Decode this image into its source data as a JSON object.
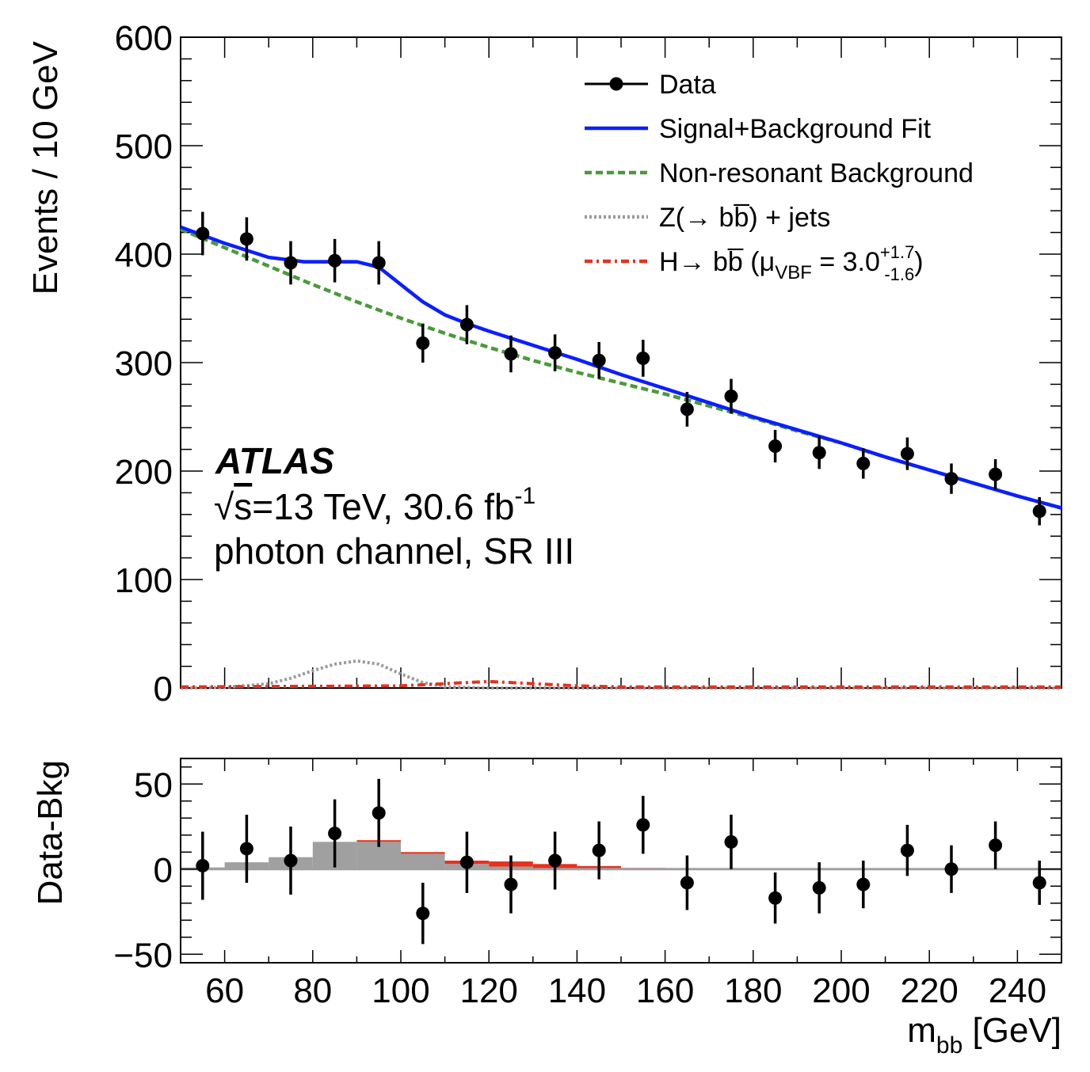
{
  "chart_data": [
    {
      "type": "scatter",
      "panel": "main",
      "ylabel": "Events / 10 GeV",
      "xlim": [
        50,
        250
      ],
      "ylim": [
        0,
        600
      ],
      "yticks": [
        "0",
        "100",
        "200",
        "300",
        "400",
        "500",
        "600"
      ],
      "legend_placement": "top-right",
      "legend": [
        {
          "label": "Data",
          "style": "marker-line",
          "color": "#000000"
        },
        {
          "label": "Signal+Background Fit",
          "style": "solid",
          "color": "#0a1fff"
        },
        {
          "label": "Non-resonant Background",
          "style": "dashed",
          "color": "#4a9a3a"
        },
        {
          "label": "Z(→ bb̅) + jets",
          "style": "dotted",
          "color": "#9a9a9a"
        },
        {
          "label": "H→ bb̅ (μ",
          "sub": "VBF",
          "eq": " =  3.0",
          "sup": "+1.7",
          "subsub": "-1.6",
          "close": ")",
          "style": "dashdot",
          "color": "#e8301c"
        }
      ],
      "annotations": {
        "experiment": "ATLAS",
        "line1_sqrt": "√",
        "line1_s": "s",
        "line1_rest": "=13 TeV, 30.6 fb",
        "line1_sup": "-1",
        "line2": "photon channel, SR III"
      },
      "data_points": {
        "x": [
          55,
          65,
          75,
          85,
          95,
          105,
          115,
          125,
          135,
          145,
          155,
          165,
          175,
          185,
          195,
          205,
          215,
          225,
          235,
          245
        ],
        "y": [
          419,
          414,
          392,
          394,
          392,
          318,
          335,
          308,
          309,
          302,
          304,
          257,
          269,
          223,
          217,
          207,
          216,
          193,
          197,
          163
        ],
        "err": [
          20,
          20,
          20,
          20,
          20,
          18,
          18,
          17,
          17,
          17,
          17,
          16,
          16,
          15,
          15,
          14,
          15,
          14,
          14,
          13
        ]
      },
      "fit_curve": {
        "x": [
          50,
          60,
          70,
          78,
          85,
          90,
          95,
          100,
          105,
          110,
          115,
          120,
          130,
          140,
          150,
          160,
          170,
          180,
          190,
          200,
          210,
          220,
          230,
          240,
          250
        ],
        "y": [
          425,
          410,
          397,
          393,
          393,
          393,
          388,
          372,
          356,
          344,
          336,
          329,
          316,
          303,
          289,
          276,
          263,
          250,
          238,
          226,
          213,
          201,
          189,
          177,
          166
        ]
      },
      "background_curve": {
        "x": [
          50,
          60,
          70,
          80,
          90,
          100,
          110,
          120,
          130,
          140,
          150,
          160,
          170,
          180,
          190,
          200,
          210,
          220,
          230,
          240,
          250
        ],
        "y": [
          423,
          406,
          389,
          372,
          356,
          341,
          327,
          314,
          302,
          291,
          281,
          271,
          260,
          249,
          237,
          226,
          213,
          201,
          189,
          177,
          166
        ]
      },
      "z_curve": {
        "x": [
          50,
          60,
          70,
          75,
          80,
          85,
          90,
          95,
          100,
          105,
          110,
          120,
          150,
          250
        ],
        "y": [
          0,
          0.5,
          4,
          9,
          16,
          22,
          25,
          22,
          13,
          5,
          1,
          0,
          0,
          0
        ]
      },
      "h_curve": {
        "x": [
          50,
          100,
          110,
          115,
          120,
          125,
          130,
          135,
          140,
          150,
          160,
          250
        ],
        "y": [
          1,
          2,
          4,
          5,
          6,
          5,
          4,
          3,
          2,
          1,
          1,
          1
        ]
      }
    },
    {
      "type": "scatter",
      "panel": "ratio",
      "ylabel": "Data-Bkg",
      "xlabel_main": "m",
      "xlabel_sub": "bb",
      "xlabel_unit": " [GeV]",
      "xlim": [
        50,
        250
      ],
      "ylim": [
        -55,
        65
      ],
      "yticks": [
        "−50",
        "0",
        "50"
      ],
      "xticks": [
        "60",
        "80",
        "100",
        "120",
        "140",
        "160",
        "180",
        "200",
        "220",
        "240"
      ],
      "residual_points": {
        "x": [
          55,
          65,
          75,
          85,
          95,
          105,
          115,
          125,
          135,
          145,
          155,
          165,
          175,
          185,
          195,
          205,
          215,
          225,
          235,
          245
        ],
        "y": [
          2,
          12,
          5,
          21,
          33,
          -26,
          4,
          -9,
          5,
          11,
          26,
          -8,
          16,
          -17,
          -11,
          -9,
          11,
          0,
          14,
          -8
        ],
        "err": [
          20,
          20,
          20,
          20,
          20,
          18,
          18,
          17,
          17,
          17,
          17,
          16,
          16,
          15,
          15,
          14,
          15,
          14,
          14,
          13
        ]
      },
      "z_hist": {
        "bins": [
          [
            50,
            60
          ],
          [
            60,
            70
          ],
          [
            70,
            80
          ],
          [
            80,
            90
          ],
          [
            90,
            100
          ],
          [
            100,
            110
          ],
          [
            110,
            120
          ],
          [
            120,
            130
          ],
          [
            130,
            140
          ],
          [
            140,
            150
          ],
          [
            150,
            160
          ],
          [
            160,
            250
          ]
        ],
        "values": [
          1,
          4,
          7,
          16,
          16,
          9,
          3,
          1.5,
          0.5,
          0.3,
          0.2,
          0
        ]
      },
      "h_hist": {
        "bins": [
          [
            50,
            60
          ],
          [
            60,
            70
          ],
          [
            70,
            80
          ],
          [
            80,
            90
          ],
          [
            90,
            100
          ],
          [
            100,
            110
          ],
          [
            110,
            120
          ],
          [
            120,
            130
          ],
          [
            130,
            140
          ],
          [
            140,
            150
          ],
          [
            150,
            160
          ],
          [
            160,
            250
          ]
        ],
        "values": [
          0,
          0,
          0,
          0,
          1,
          1,
          2,
          3,
          2.5,
          1.5,
          0.5,
          0
        ]
      }
    }
  ]
}
